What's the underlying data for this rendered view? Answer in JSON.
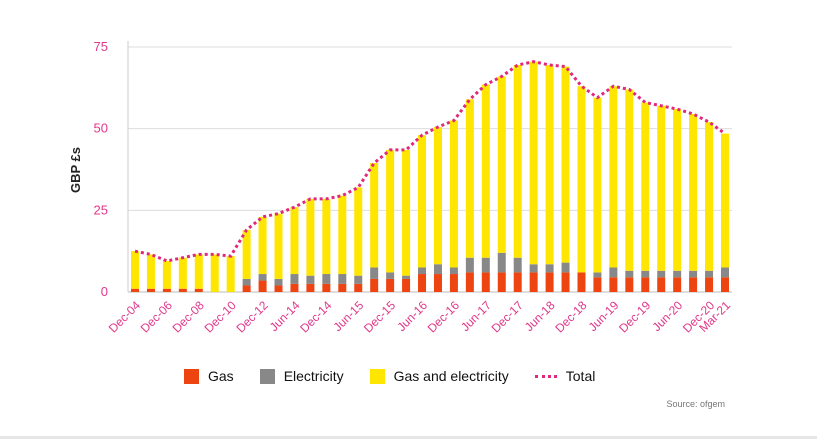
{
  "chart_data": {
    "type": "bar",
    "stacked": true,
    "ylabel": "GBP £s",
    "ylim": [
      0,
      75
    ],
    "yticks": [
      0,
      25,
      50,
      75
    ],
    "grid": "horizontal",
    "legend_position": "bottom",
    "x_tick_labels": [
      "Dec-04",
      "Dec-06",
      "Dec-08",
      "Dec-10",
      "Dec-12",
      "Jun-14",
      "Dec-14",
      "Jun-15",
      "Dec-15",
      "Jun-16",
      "Dec-16",
      "Jun-17",
      "Dec-17",
      "Jun-18",
      "Dec-18",
      "Jun-19",
      "Dec-19",
      "Jun-20",
      "Dec-20",
      "Mar-21"
    ],
    "x_tick_bar_index": [
      0,
      2,
      4,
      6,
      8,
      10,
      12,
      14,
      16,
      18,
      20,
      22,
      24,
      26,
      28,
      30,
      32,
      34,
      36,
      37
    ],
    "series": [
      {
        "name": "Gas",
        "color": "#ee4411",
        "values": [
          1,
          1,
          1,
          1,
          1,
          0,
          0,
          2,
          3.5,
          2,
          2.5,
          2.5,
          2.5,
          2.5,
          2.5,
          4,
          4,
          4,
          5.5,
          5.5,
          5.5,
          6,
          6,
          6,
          6,
          6,
          6,
          6,
          6,
          4.5,
          4.5,
          4.5,
          4.5,
          4.5,
          4.5,
          4.5,
          4.5,
          4.5
        ]
      },
      {
        "name": "Electricity",
        "color": "#888888",
        "values": [
          0,
          0,
          0,
          0,
          0,
          0,
          0,
          2,
          2,
          2,
          3,
          2.5,
          3,
          3,
          2.5,
          3.5,
          2,
          1,
          2,
          3,
          2,
          4.5,
          4.5,
          6,
          4.5,
          2.5,
          2.5,
          3,
          0,
          1.5,
          3,
          2,
          2,
          2,
          2,
          2,
          2,
          3
        ]
      },
      {
        "name": "Gas and electricity",
        "color": "#ffe600",
        "values": [
          11.5,
          10.5,
          8.5,
          9.5,
          10.5,
          11.5,
          11,
          15,
          17.5,
          20,
          20.5,
          23.5,
          23,
          24,
          27,
          32,
          37.5,
          38.5,
          40.5,
          42,
          45,
          48.5,
          53,
          54,
          59,
          62,
          61,
          60,
          57,
          53.5,
          55.5,
          55.5,
          51.5,
          50.5,
          49.5,
          48,
          45.5,
          41
        ]
      }
    ],
    "total": {
      "name": "Total",
      "color": "#e0287c",
      "style": "dotted"
    },
    "source": "Source: ofgem"
  },
  "legend": {
    "gas": "Gas",
    "electricity": "Electricity",
    "gas_and_electricity": "Gas and electricity",
    "total": "Total"
  },
  "source_label": "Source: ofgem"
}
